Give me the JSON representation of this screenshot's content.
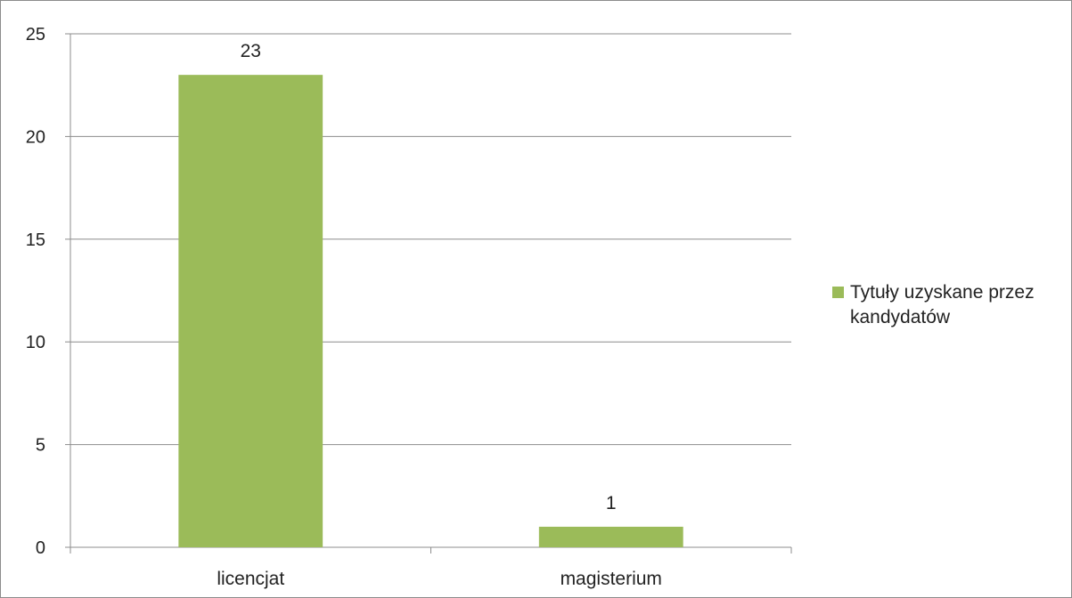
{
  "chart_data": {
    "type": "bar",
    "categories": [
      "licencjat",
      "magisterium"
    ],
    "series": [
      {
        "name": "Tytuły uzyskane przez kandydatów",
        "values": [
          23,
          1
        ],
        "color": "#9bbb59"
      }
    ],
    "data_labels": [
      "23",
      "1"
    ],
    "ylim": [
      0,
      25
    ],
    "y_ticks": [
      "0",
      "5",
      "10",
      "15",
      "20",
      "25"
    ],
    "grid": true,
    "legend": {
      "position": "right",
      "lines": [
        "Tytuły uzyskane przez",
        "kandydatów"
      ]
    },
    "title": "",
    "xlabel": "",
    "ylabel": ""
  }
}
